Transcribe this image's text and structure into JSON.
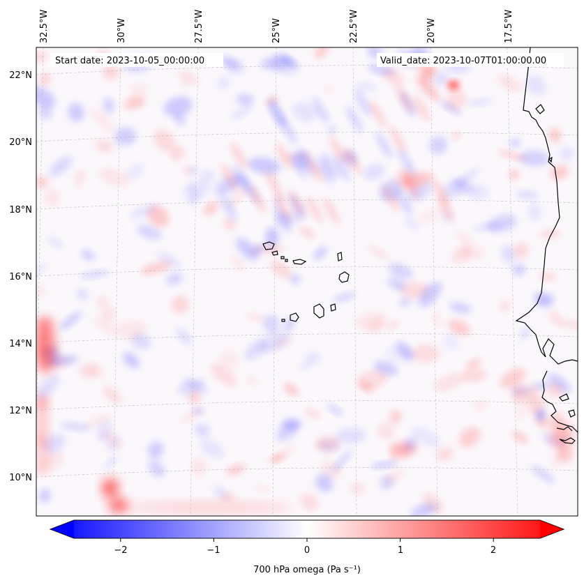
{
  "header": {
    "start_date": "Start date: 2023-10-05_00:00:00",
    "valid_date": "Valid_date: 2023-10-07T01:00:00.00"
  },
  "map": {
    "lon_labels": [
      "32.5°W",
      "30°W",
      "27.5°W",
      "25°W",
      "22.5°W",
      "20°W",
      "17.5°W"
    ],
    "lat_labels": [
      "22°N",
      "20°N",
      "18°N",
      "16°N",
      "14°N",
      "12°N",
      "10°N"
    ],
    "field": "700 hPa omega",
    "colormap": "bwr",
    "colors": {
      "negative": "#0000ff",
      "zero": "#ffffff",
      "positive": "#ff0000",
      "coastline": "#000000",
      "gridline": "#b0b0b0"
    }
  },
  "colorbar": {
    "ticks": [
      "−2",
      "−1",
      "0",
      "1",
      "2"
    ],
    "tick_values": [
      -2,
      -1,
      0,
      1,
      2
    ],
    "range": [
      -2.5,
      2.5
    ],
    "extend": "both",
    "label": "700 hPa omega (Pa s⁻¹)"
  }
}
